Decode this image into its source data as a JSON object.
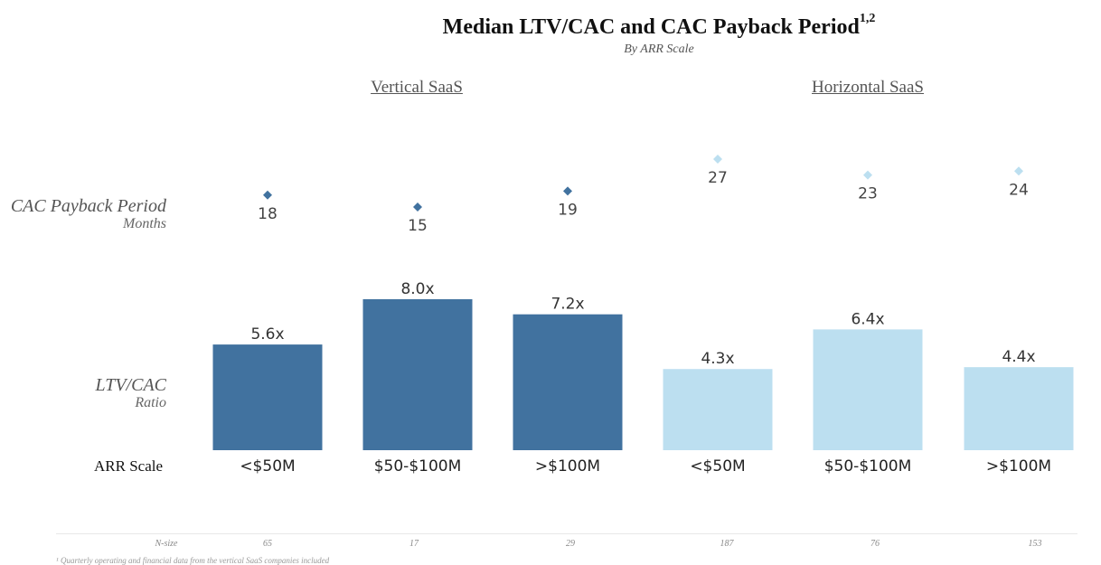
{
  "chart_data": {
    "type": "bar",
    "title": "Median LTV/CAC and CAC Payback Period",
    "title_superscript": "1,2",
    "subtitle": "By ARR Scale",
    "groups": [
      "Vertical SaaS",
      "Horizontal SaaS"
    ],
    "categories": [
      "<$50M",
      "$50-$100M",
      ">$100M",
      "<$50M",
      "$50-$100M",
      ">$100M"
    ],
    "category_group": [
      0,
      0,
      0,
      1,
      1,
      1
    ],
    "series": [
      {
        "label": "LTV/CAC",
        "unit": "Ratio",
        "type": "bar",
        "values": [
          5.6,
          8.0,
          7.2,
          4.3,
          6.4,
          4.4
        ],
        "value_labels": [
          "5.6x",
          "8.0x",
          "7.2x",
          "4.3x",
          "6.4x",
          "4.4x"
        ]
      },
      {
        "label": "CAC Payback Period",
        "unit": "Months",
        "type": "scatter",
        "values": [
          18,
          15,
          19,
          27,
          23,
          24
        ],
        "value_labels": [
          "18",
          "15",
          "19",
          "27",
          "23",
          "24"
        ]
      }
    ],
    "x_axis_label": "ARR Scale",
    "n_size_label": "N-size",
    "n_size": [
      "65",
      "17",
      "29",
      "187",
      "76",
      "153"
    ],
    "colors": {
      "vertical": "#41729f",
      "horizontal": "#bcdff0"
    },
    "ylim_bars": [
      0,
      8.0
    ],
    "ylim_payback": [
      15,
      27
    ],
    "grid": false,
    "legend": "none"
  },
  "footnote": "¹ Quarterly operating and financial data from the vertical SaaS companies included"
}
